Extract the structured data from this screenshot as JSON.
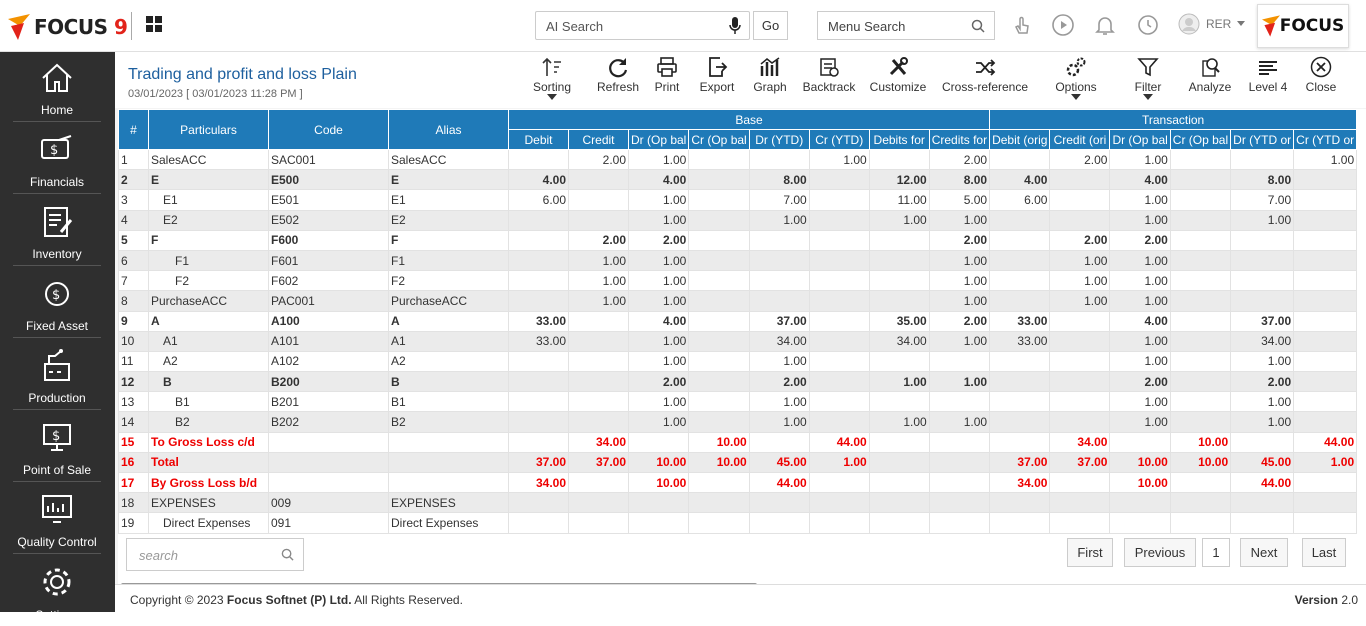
{
  "app": {
    "logo_text": "FOCUS",
    "logo_nine": "9",
    "right_logo": "FOCUS",
    "user": "RER"
  },
  "search": {
    "ai_placeholder": "AI Search",
    "go": "Go",
    "menu_placeholder": "Menu Search"
  },
  "sidebar": {
    "items": [
      {
        "label": "Home",
        "icon": "home-icon"
      },
      {
        "label": "Financials",
        "icon": "financials-icon"
      },
      {
        "label": "Inventory",
        "icon": "inventory-icon"
      },
      {
        "label": "Fixed Asset",
        "icon": "fixed-asset-icon"
      },
      {
        "label": "Production",
        "icon": "production-icon"
      },
      {
        "label": "Point of Sale",
        "icon": "pos-icon"
      },
      {
        "label": "Quality Control",
        "icon": "quality-icon"
      },
      {
        "label": "Settings",
        "icon": "gear-icon"
      }
    ]
  },
  "report": {
    "title": "Trading and profit and loss Plain",
    "subtitle": "03/01/2023 [ 03/01/2023 11:28 PM ]"
  },
  "toolbar": {
    "sorting": "Sorting",
    "refresh": "Refresh",
    "print": "Print",
    "export": "Export",
    "graph": "Graph",
    "backtrack": "Backtrack",
    "customize": "Customize",
    "crossref": "Cross-reference",
    "options": "Options",
    "filter": "Filter",
    "analyze": "Analyze",
    "level": "Level 4",
    "close": "Close"
  },
  "table": {
    "group_headers": {
      "base": "Base",
      "transaction": "Transaction"
    },
    "headers": [
      "#",
      "Particulars",
      "Code",
      "Alias",
      "Debit",
      "Credit",
      "Dr (Op bal",
      "Cr (Op bal",
      "Dr (YTD)",
      "Cr (YTD)",
      "Debits for",
      "Credits for",
      "Debit (orig",
      "Credit (ori",
      "Dr (Op bal",
      "Cr (Op bal",
      "Dr (YTD or",
      "Cr (YTD or"
    ],
    "rows": [
      [
        "1",
        "SalesACC",
        "SAC001",
        "SalesACC",
        "",
        "2.00",
        "1.00",
        "",
        "",
        "1.00",
        "",
        "2.00",
        "",
        "2.00",
        "1.00",
        "",
        "",
        "1.00"
      ],
      [
        "2",
        "E",
        "E500",
        "E",
        "4.00",
        "",
        "4.00",
        "",
        "8.00",
        "",
        "12.00",
        "8.00",
        "4.00",
        "",
        "4.00",
        "",
        "8.00",
        ""
      ],
      [
        "3",
        "E1",
        "E501",
        "E1",
        "6.00",
        "",
        "1.00",
        "",
        "7.00",
        "",
        "11.00",
        "5.00",
        "6.00",
        "",
        "1.00",
        "",
        "7.00",
        ""
      ],
      [
        "4",
        "E2",
        "E502",
        "E2",
        "",
        "",
        "1.00",
        "",
        "1.00",
        "",
        "1.00",
        "1.00",
        "",
        "",
        "1.00",
        "",
        "1.00",
        ""
      ],
      [
        "5",
        "F",
        "F600",
        "F",
        "",
        "2.00",
        "2.00",
        "",
        "",
        "",
        "",
        "2.00",
        "",
        "2.00",
        "2.00",
        "",
        "",
        ""
      ],
      [
        "6",
        "F1",
        "F601",
        "F1",
        "",
        "1.00",
        "1.00",
        "",
        "",
        "",
        "",
        "1.00",
        "",
        "1.00",
        "1.00",
        "",
        "",
        ""
      ],
      [
        "7",
        "F2",
        "F602",
        "F2",
        "",
        "1.00",
        "1.00",
        "",
        "",
        "",
        "",
        "1.00",
        "",
        "1.00",
        "1.00",
        "",
        "",
        ""
      ],
      [
        "8",
        "PurchaseACC",
        "PAC001",
        "PurchaseACC",
        "",
        "1.00",
        "1.00",
        "",
        "",
        "",
        "",
        "1.00",
        "",
        "1.00",
        "1.00",
        "",
        "",
        ""
      ],
      [
        "9",
        "A",
        "A100",
        "A",
        "33.00",
        "",
        "4.00",
        "",
        "37.00",
        "",
        "35.00",
        "2.00",
        "33.00",
        "",
        "4.00",
        "",
        "37.00",
        ""
      ],
      [
        "10",
        "A1",
        "A101",
        "A1",
        "33.00",
        "",
        "1.00",
        "",
        "34.00",
        "",
        "34.00",
        "1.00",
        "33.00",
        "",
        "1.00",
        "",
        "34.00",
        ""
      ],
      [
        "11",
        "A2",
        "A102",
        "A2",
        "",
        "",
        "1.00",
        "",
        "1.00",
        "",
        "",
        "",
        "",
        "",
        "1.00",
        "",
        "1.00",
        ""
      ],
      [
        "12",
        "B",
        "B200",
        "B",
        "",
        "",
        "2.00",
        "",
        "2.00",
        "",
        "1.00",
        "1.00",
        "",
        "",
        "2.00",
        "",
        "2.00",
        ""
      ],
      [
        "13",
        "B1",
        "B201",
        "B1",
        "",
        "",
        "1.00",
        "",
        "1.00",
        "",
        "",
        "",
        "",
        "",
        "1.00",
        "",
        "1.00",
        ""
      ],
      [
        "14",
        "B2",
        "B202",
        "B2",
        "",
        "",
        "1.00",
        "",
        "1.00",
        "",
        "1.00",
        "1.00",
        "",
        "",
        "1.00",
        "",
        "1.00",
        ""
      ],
      [
        "15",
        "To Gross Loss c/d",
        "",
        "",
        "",
        "34.00",
        "",
        "10.00",
        "",
        "44.00",
        "",
        "",
        "",
        "34.00",
        "",
        "10.00",
        "",
        "44.00"
      ],
      [
        "16",
        "Total",
        "",
        "",
        "37.00",
        "37.00",
        "10.00",
        "10.00",
        "45.00",
        "1.00",
        "",
        "",
        "37.00",
        "37.00",
        "10.00",
        "10.00",
        "45.00",
        "1.00"
      ],
      [
        "17",
        "By Gross Loss b/d",
        "",
        "",
        "34.00",
        "",
        "10.00",
        "",
        "44.00",
        "",
        "",
        "",
        "34.00",
        "",
        "10.00",
        "",
        "44.00",
        ""
      ],
      [
        "18",
        "EXPENSES",
        "009",
        "EXPENSES",
        "",
        "",
        "",
        "",
        "",
        "",
        "",
        "",
        "",
        "",
        "",
        "",
        "",
        ""
      ],
      [
        "19",
        "Direct Expenses",
        "091",
        "Direct Expenses",
        "",
        "",
        "",
        "",
        "",
        "",
        "",
        "",
        "",
        "",
        "",
        "",
        "",
        ""
      ]
    ]
  },
  "pager": {
    "search_placeholder": "search",
    "first": "First",
    "previous": "Previous",
    "page": "1",
    "next": "Next",
    "last": "Last"
  },
  "footer": {
    "copyright_pre": "Copyright © 2023 ",
    "company": "Focus Softnet (P) Ltd.",
    "copyright_post": " All Rights Reserved.",
    "version_label": "Version",
    "version": "2.0"
  },
  "colors": {
    "header_blue": "#1f7ab8",
    "sidebar": "#2f2f2f",
    "title_blue": "#1d5f9e",
    "red": "#e00000"
  }
}
